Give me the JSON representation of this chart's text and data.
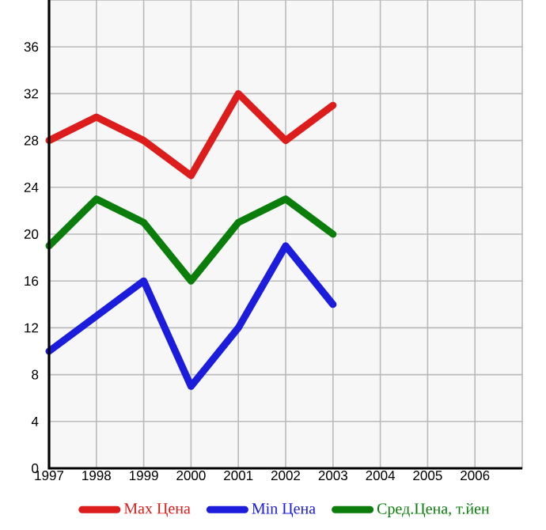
{
  "chart_data": {
    "type": "line",
    "x": [
      1997,
      1998,
      1999,
      2000,
      2001,
      2002,
      2003
    ],
    "series": [
      {
        "name": "Max Цена",
        "color": "#dd1c1c",
        "values": [
          28,
          30,
          28,
          25,
          32,
          28,
          31
        ]
      },
      {
        "name": "Min Цена",
        "color": "#1c1cdd",
        "values": [
          10,
          13,
          16,
          7,
          12,
          19,
          14
        ]
      },
      {
        "name": "Сред.Цена, т.йен",
        "color": "#0a7d0a",
        "values": [
          19,
          23,
          21,
          16,
          21,
          23,
          20
        ]
      }
    ],
    "xlim": [
      1997,
      2007
    ],
    "xticks": [
      1997,
      1998,
      1999,
      2000,
      2001,
      2002,
      2003,
      2004,
      2005,
      2006
    ],
    "ylim": [
      0,
      40
    ],
    "yticks": [
      0,
      4,
      8,
      12,
      16,
      20,
      24,
      28,
      32,
      36
    ],
    "grid": true,
    "legend": "bottom",
    "marker": "none",
    "line_style": "solid"
  }
}
